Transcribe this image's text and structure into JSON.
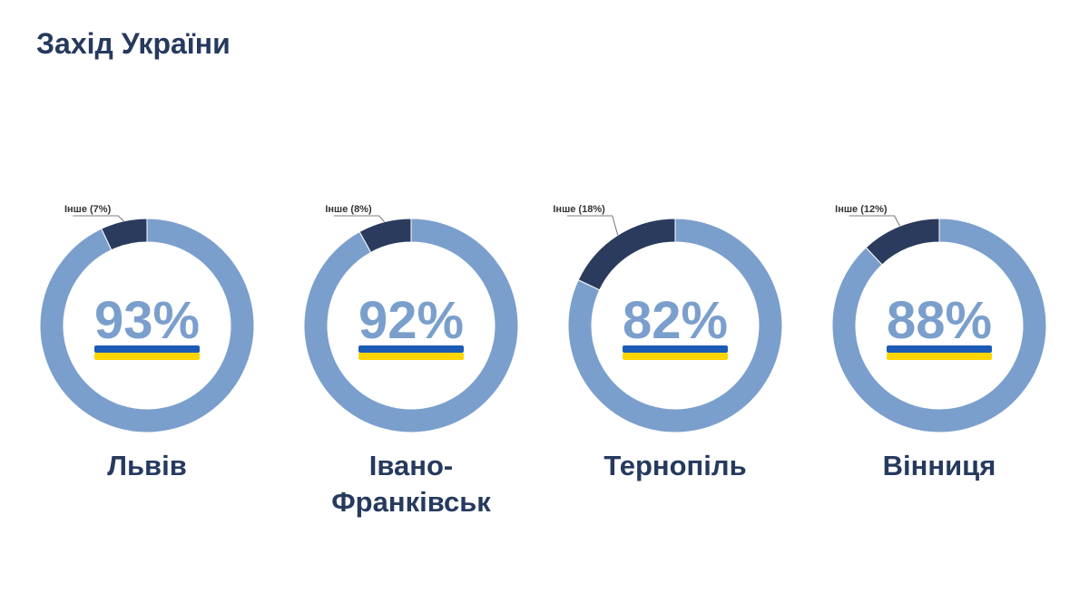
{
  "page": {
    "title": "Захід України"
  },
  "colors": {
    "main_slice": "#7b9fcc",
    "other_slice": "#2b3b5e",
    "title": "#263a5e",
    "percent_text": "#7b9fcc",
    "flag_blue": "#1d5cb5",
    "flag_yellow": "#ffd500"
  },
  "chart_data": [
    {
      "type": "pie",
      "subtype": "donut",
      "title": "Львів",
      "center_label": "93%",
      "slices": [
        {
          "label": "",
          "value": 93
        },
        {
          "label": "Інше (7%)",
          "value": 7
        }
      ]
    },
    {
      "type": "pie",
      "subtype": "donut",
      "title": "Івано-Франківськ",
      "center_label": "92%",
      "slices": [
        {
          "label": "",
          "value": 92
        },
        {
          "label": "Інше (8%)",
          "value": 8
        }
      ]
    },
    {
      "type": "pie",
      "subtype": "donut",
      "title": "Тернопіль",
      "center_label": "82%",
      "slices": [
        {
          "label": "",
          "value": 82
        },
        {
          "label": "Інше (18%)",
          "value": 18
        }
      ]
    },
    {
      "type": "pie",
      "subtype": "donut",
      "title": "Вінниця",
      "center_label": "88%",
      "slices": [
        {
          "label": "",
          "value": 88
        },
        {
          "label": "Інше (12%)",
          "value": 12
        }
      ]
    }
  ]
}
